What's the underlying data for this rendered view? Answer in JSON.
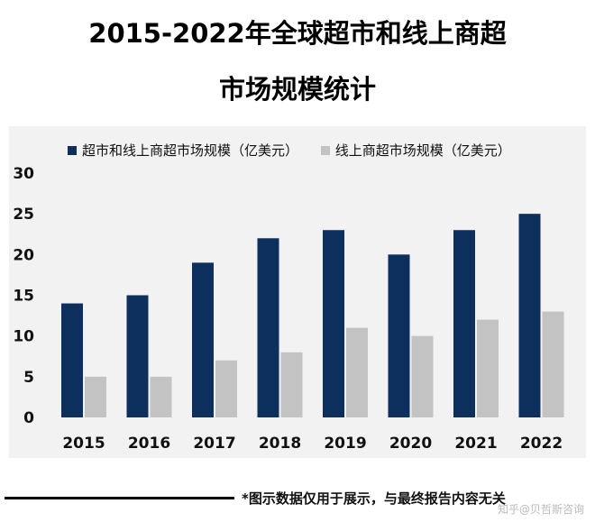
{
  "title_line1": "2015-2022年全球超市和线上商超",
  "title_line2": "市场规模统计",
  "footer_note": "*图示数据仅用于展示，与最终报告内容无关",
  "source_watermark": "知乎@贝哲斯咨询",
  "colors": {
    "series1": "#0d2f5e",
    "series2": "#c3c3c3",
    "panel": "#f2f2f2"
  },
  "chart_data": {
    "type": "bar",
    "categories": [
      "2015",
      "2016",
      "2017",
      "2018",
      "2019",
      "2020",
      "2021",
      "2022"
    ],
    "series": [
      {
        "name": "超市和线上商超市场规模（亿美元）",
        "values": [
          14,
          15,
          19,
          22,
          23,
          20,
          23,
          25
        ]
      },
      {
        "name": "线上商超市场规模（亿美元）",
        "values": [
          5,
          5,
          7,
          8,
          11,
          10,
          12,
          13
        ]
      }
    ],
    "ylim": [
      0,
      30
    ],
    "yticks": [
      0,
      5,
      10,
      15,
      20,
      25,
      30
    ],
    "grid": false,
    "legend_position": "top"
  }
}
